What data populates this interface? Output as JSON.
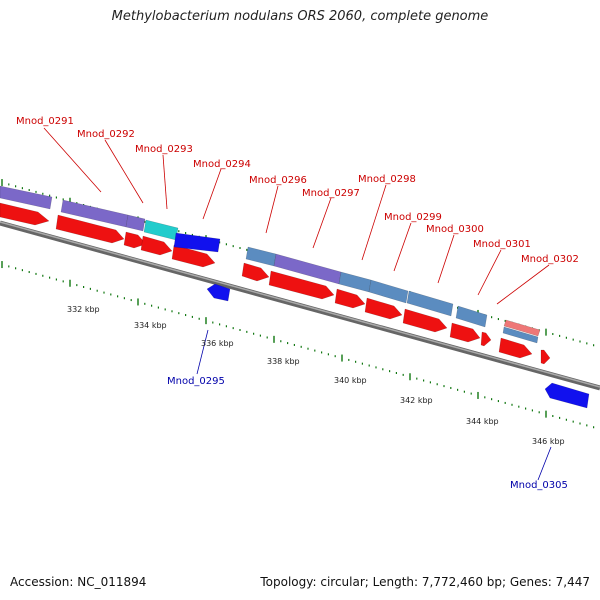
{
  "title": "Methylobacterium nodulans ORS 2060, complete genome",
  "footer": {
    "accession": "Accession: NC_011894",
    "summary": "Topology: circular; Length: 7,772,460 bp; Genes: 7,447"
  },
  "colors": {
    "backbone": "#888888",
    "cds": "#ee1111",
    "cds_reverse": "#1111ee",
    "cog_purple": "#7b68c8",
    "cog_steel": "#5b8cc0",
    "cog_cyan": "#22cccc",
    "cog_pink": "#ee7777",
    "tick": "#117711",
    "label_forward": "#cc0000",
    "label_reverse": "#0000aa"
  },
  "axis_labels": [
    "332 kbp",
    "334 kbp",
    "336 kbp",
    "338 kbp",
    "340 kbp",
    "342 kbp",
    "344 kbp",
    "346 kbp"
  ],
  "gene_labels_forward": [
    "Mnod_0291",
    "Mnod_0292",
    "Mnod_0293",
    "Mnod_0294",
    "Mnod_0296",
    "Mnod_0297",
    "Mnod_0298",
    "Mnod_0299",
    "Mnod_0300",
    "Mnod_0301",
    "Mnod_0302"
  ],
  "gene_labels_reverse": [
    "Mnod_0295",
    "Mnod_0305"
  ]
}
